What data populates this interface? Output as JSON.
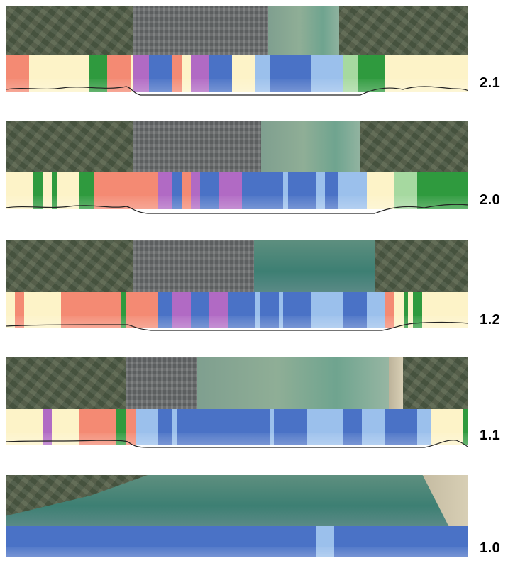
{
  "colors": {
    "cream": "#fdf3c8",
    "salmon": "#f48a73",
    "green": "#2f9a3e",
    "lightgreen": "#a6d9a0",
    "purple": "#b16ac4",
    "blue": "#4a72c6",
    "lightblue": "#9bc0ec",
    "pale": "#cfe0f4"
  },
  "panels": [
    {
      "label": "2.1",
      "segments": [
        [
          "salmon",
          0,
          5
        ],
        [
          "cream",
          5,
          18
        ],
        [
          "green",
          18,
          22
        ],
        [
          "salmon",
          22,
          27
        ],
        [
          "cream",
          27,
          27.5
        ],
        [
          "purple",
          27.5,
          31
        ],
        [
          "blue",
          31,
          36
        ],
        [
          "salmon",
          36,
          38
        ],
        [
          "cream",
          38,
          40
        ],
        [
          "purple",
          40,
          44
        ],
        [
          "blue",
          44,
          49
        ],
        [
          "cream",
          49,
          54
        ],
        [
          "lightblue",
          54,
          57
        ],
        [
          "blue",
          57,
          66
        ],
        [
          "lightblue",
          66,
          73
        ],
        [
          "lightgreen",
          73,
          76
        ],
        [
          "green",
          76,
          82
        ],
        [
          "cream",
          82,
          89
        ],
        [
          "cream",
          89,
          100
        ]
      ]
    },
    {
      "label": "2.0",
      "segments": [
        [
          "cream",
          0,
          6
        ],
        [
          "green",
          6,
          8
        ],
        [
          "cream",
          8,
          10
        ],
        [
          "green",
          10,
          11
        ],
        [
          "cream",
          11,
          16
        ],
        [
          "green",
          16,
          19
        ],
        [
          "salmon",
          19,
          33
        ],
        [
          "purple",
          33,
          36
        ],
        [
          "blue",
          36,
          38
        ],
        [
          "salmon",
          38,
          40
        ],
        [
          "purple",
          40,
          42
        ],
        [
          "blue",
          42,
          46
        ],
        [
          "purple",
          46,
          51
        ],
        [
          "blue",
          51,
          60
        ],
        [
          "lightblue",
          60,
          61
        ],
        [
          "blue",
          61,
          67
        ],
        [
          "lightblue",
          67,
          69
        ],
        [
          "blue",
          69,
          72
        ],
        [
          "lightblue",
          72,
          78
        ],
        [
          "cream",
          78,
          84
        ],
        [
          "lightgreen",
          84,
          89
        ],
        [
          "green",
          89,
          100
        ]
      ]
    },
    {
      "label": "1.2",
      "segments": [
        [
          "cream",
          0,
          2
        ],
        [
          "salmon",
          2,
          4
        ],
        [
          "cream",
          4,
          12
        ],
        [
          "salmon",
          12,
          25
        ],
        [
          "green",
          25,
          26
        ],
        [
          "salmon",
          26,
          33
        ],
        [
          "blue",
          33,
          36
        ],
        [
          "purple",
          36,
          40
        ],
        [
          "blue",
          40,
          44
        ],
        [
          "purple",
          44,
          48
        ],
        [
          "blue",
          48,
          54
        ],
        [
          "lightblue",
          54,
          55
        ],
        [
          "blue",
          55,
          59
        ],
        [
          "lightblue",
          59,
          60
        ],
        [
          "blue",
          60,
          66
        ],
        [
          "lightblue",
          66,
          73
        ],
        [
          "blue",
          73,
          78
        ],
        [
          "lightblue",
          78,
          82
        ],
        [
          "salmon",
          82,
          84
        ],
        [
          "cream",
          84,
          86
        ],
        [
          "green",
          86,
          87
        ],
        [
          "cream",
          87,
          88
        ],
        [
          "green",
          88,
          90
        ],
        [
          "cream",
          90,
          100
        ]
      ]
    },
    {
      "label": "1.1",
      "segments": [
        [
          "cream",
          0,
          8
        ],
        [
          "purple",
          8,
          10
        ],
        [
          "cream",
          10,
          16
        ],
        [
          "salmon",
          16,
          24
        ],
        [
          "green",
          24,
          26
        ],
        [
          "salmon",
          26,
          28
        ],
        [
          "lightblue",
          28,
          33
        ],
        [
          "blue",
          33,
          36
        ],
        [
          "lightblue",
          36,
          37
        ],
        [
          "blue",
          37,
          57
        ],
        [
          "lightblue",
          57,
          58
        ],
        [
          "blue",
          58,
          65
        ],
        [
          "lightblue",
          65,
          73
        ],
        [
          "blue",
          73,
          77
        ],
        [
          "lightblue",
          77,
          82
        ],
        [
          "blue",
          82,
          89
        ],
        [
          "lightblue",
          89,
          92
        ],
        [
          "cream",
          92,
          99
        ],
        [
          "green",
          99,
          100
        ]
      ]
    },
    {
      "label": "1.0",
      "segments": [
        [
          "blue",
          0,
          67
        ],
        [
          "lightblue",
          67,
          71
        ],
        [
          "blue",
          71,
          100
        ]
      ]
    }
  ]
}
